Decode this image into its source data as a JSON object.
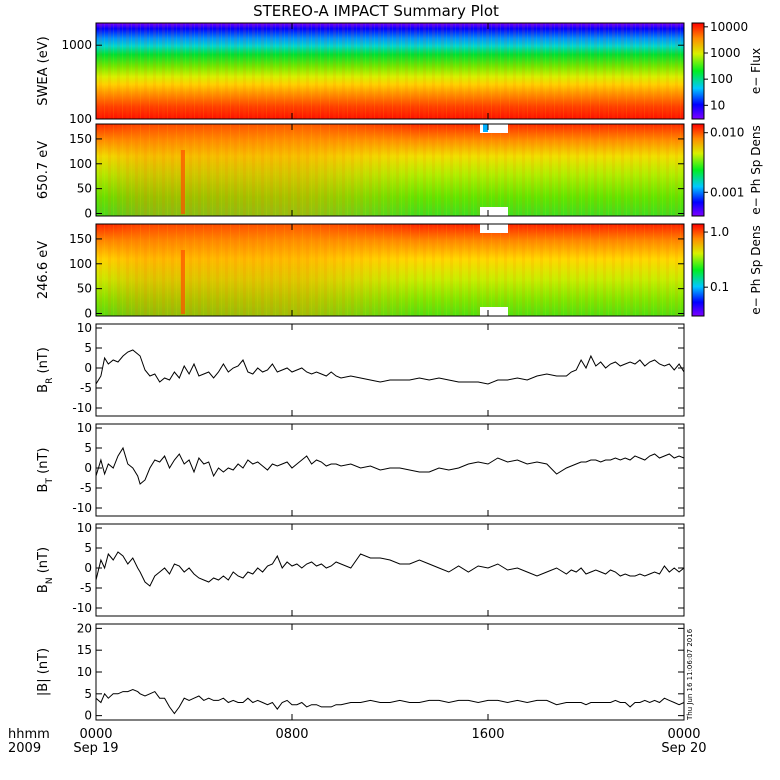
{
  "chart_data": {
    "title": "STEREO-A IMPACT Summary Plot",
    "type": "multi-panel",
    "xaxis": {
      "header_label": "hhmm",
      "header_year": "2009",
      "range_hours": [
        0,
        24
      ],
      "ticks": [
        {
          "hour": 0,
          "label": "0000",
          "date": "Sep 19"
        },
        {
          "hour": 8,
          "label": "0800",
          "date": ""
        },
        {
          "hour": 16,
          "label": "1600",
          "date": ""
        },
        {
          "hour": 24,
          "label": "0000",
          "date": "Sep 20"
        }
      ]
    },
    "spectrogram_panels": [
      {
        "name": "swea",
        "type": "heatmap",
        "ylabel": "SWEA (eV)",
        "yscale": "log",
        "ylim": [
          100,
          2000
        ],
        "yticks": [
          {
            "v": 1000,
            "label": "1000"
          },
          {
            "v": 100,
            "label": "100"
          }
        ],
        "colorbar_label": "e− Flux",
        "colorbar_scale": "log",
        "colorbar_range": [
          3,
          14000
        ],
        "colorbar_ticks": [
          {
            "v": 10000,
            "label": "10000"
          },
          {
            "v": 1000,
            "label": "1000"
          },
          {
            "v": 100,
            "label": "100"
          },
          {
            "v": 10,
            "label": "10"
          }
        ]
      },
      {
        "name": "pad-650",
        "type": "heatmap",
        "ylabel": "650.7 eV",
        "yscale": "linear",
        "ylim": [
          -5,
          180
        ],
        "yticks": [
          {
            "v": 150,
            "label": "150"
          },
          {
            "v": 100,
            "label": "100"
          },
          {
            "v": 50,
            "label": "50"
          },
          {
            "v": 0,
            "label": "0"
          }
        ],
        "colorbar_label": "e− Ph Sp Dens",
        "colorbar_scale": "log",
        "colorbar_range": [
          0.0004,
          0.014
        ],
        "colorbar_ticks": [
          {
            "v": 0.01,
            "label": "0.010"
          },
          {
            "v": 0.001,
            "label": "0.001"
          }
        ]
      },
      {
        "name": "pad-246",
        "type": "heatmap",
        "ylabel": "246.6 eV",
        "yscale": "linear",
        "ylim": [
          -5,
          180
        ],
        "yticks": [
          {
            "v": 150,
            "label": "150"
          },
          {
            "v": 100,
            "label": "100"
          },
          {
            "v": 50,
            "label": "50"
          },
          {
            "v": 0,
            "label": "0"
          }
        ],
        "colorbar_label": "e− Ph Sp Dens",
        "colorbar_scale": "log",
        "colorbar_range": [
          0.03,
          1.4
        ],
        "colorbar_ticks": [
          {
            "v": 1.0,
            "label": "1.0"
          },
          {
            "v": 0.1,
            "label": "0.1"
          }
        ]
      }
    ],
    "line_panels": [
      {
        "name": "br",
        "type": "line",
        "ylabel_main": "B",
        "ylabel_sub": "R",
        "ylabel_unit": " (nT)",
        "ylim": [
          -12,
          11
        ],
        "yticks": [
          {
            "v": 10,
            "label": "10"
          },
          {
            "v": 5,
            "label": "5"
          },
          {
            "v": 0,
            "label": "0"
          },
          {
            "v": -5,
            "label": "-5"
          },
          {
            "v": -10,
            "label": "-10"
          }
        ],
        "x": [
          0,
          0.2,
          0.35,
          0.5,
          0.7,
          0.9,
          1.1,
          1.3,
          1.5,
          1.7,
          1.8,
          2.0,
          2.2,
          2.4,
          2.6,
          2.8,
          3.0,
          3.2,
          3.4,
          3.6,
          3.8,
          4.0,
          4.2,
          4.4,
          4.6,
          4.8,
          5.0,
          5.2,
          5.4,
          5.6,
          5.8,
          6.0,
          6.2,
          6.4,
          6.6,
          6.8,
          7.0,
          7.2,
          7.4,
          7.6,
          7.8,
          8.0,
          8.2,
          8.4,
          8.6,
          8.8,
          9.0,
          9.2,
          9.4,
          9.6,
          9.8,
          10.0,
          10.4,
          10.8,
          11.2,
          11.6,
          12.0,
          12.4,
          12.8,
          13.2,
          13.6,
          14.0,
          14.4,
          14.8,
          15.2,
          15.6,
          16.0,
          16.4,
          16.8,
          17.2,
          17.6,
          18.0,
          18.4,
          18.8,
          19.2,
          19.4,
          19.6,
          19.8,
          20.0,
          20.2,
          20.4,
          20.6,
          20.8,
          21.0,
          21.2,
          21.4,
          21.6,
          21.8,
          22.0,
          22.2,
          22.4,
          22.6,
          22.8,
          23.0,
          23.2,
          23.4,
          23.6,
          23.8,
          24.0
        ],
        "values": [
          -4,
          -2,
          2.5,
          1,
          2,
          1.5,
          3,
          4,
          4.5,
          3.5,
          3,
          -0.5,
          -2,
          -1.5,
          -3.5,
          -2.5,
          -3,
          -1,
          -2.5,
          0.5,
          -1.5,
          1,
          -2,
          -1.5,
          -1,
          -2.5,
          -1,
          1,
          -1,
          0,
          0.5,
          2,
          -1,
          -1.5,
          0,
          -1,
          -0.5,
          1,
          -1,
          -0.5,
          0,
          -1,
          -0.5,
          0,
          -1,
          -1.5,
          -1,
          -1.5,
          -2,
          -1,
          -2,
          -2.5,
          -2,
          -2.5,
          -3,
          -3.5,
          -3,
          -3,
          -3,
          -2.5,
          -3,
          -2.5,
          -3,
          -3.5,
          -3.5,
          -3.5,
          -4,
          -3,
          -3,
          -2.5,
          -3,
          -2,
          -1.5,
          -2,
          -2,
          -1,
          -0.5,
          2,
          0,
          3,
          0.5,
          1.5,
          0,
          1,
          1.5,
          0.5,
          1,
          1.5,
          1,
          2,
          0.5,
          1.5,
          2,
          1,
          0.5,
          1,
          -0.5,
          1,
          -1
        ]
      },
      {
        "name": "bt",
        "type": "line",
        "ylabel_main": "B",
        "ylabel_sub": "T",
        "ylabel_unit": " (nT)",
        "ylim": [
          -12,
          11
        ],
        "yticks": [
          {
            "v": 10,
            "label": "10"
          },
          {
            "v": 5,
            "label": "5"
          },
          {
            "v": 0,
            "label": "0"
          },
          {
            "v": -5,
            "label": "-5"
          },
          {
            "v": -10,
            "label": "-10"
          }
        ],
        "x": [
          0,
          0.2,
          0.35,
          0.5,
          0.7,
          0.9,
          1.1,
          1.3,
          1.5,
          1.7,
          1.8,
          2.0,
          2.2,
          2.4,
          2.6,
          2.8,
          3.0,
          3.2,
          3.4,
          3.6,
          3.8,
          4.0,
          4.2,
          4.4,
          4.6,
          4.8,
          5.0,
          5.2,
          5.4,
          5.6,
          5.8,
          6.0,
          6.2,
          6.4,
          6.6,
          6.8,
          7.0,
          7.2,
          7.4,
          7.6,
          7.8,
          8.0,
          8.2,
          8.4,
          8.6,
          8.8,
          9.0,
          9.2,
          9.4,
          9.6,
          9.8,
          10.0,
          10.4,
          10.8,
          11.2,
          11.6,
          12.0,
          12.4,
          12.8,
          13.2,
          13.6,
          14.0,
          14.4,
          14.8,
          15.2,
          15.6,
          16.0,
          16.4,
          16.8,
          17.2,
          17.6,
          18.0,
          18.4,
          18.8,
          19.2,
          19.4,
          19.6,
          19.8,
          20.0,
          20.2,
          20.4,
          20.6,
          20.8,
          21.0,
          21.2,
          21.4,
          21.6,
          21.8,
          22.0,
          22.2,
          22.4,
          22.6,
          22.8,
          23.0,
          23.2,
          23.4,
          23.6,
          23.8,
          24.0
        ],
        "values": [
          -2,
          2,
          -1.5,
          1,
          0,
          3,
          5,
          1,
          0,
          -2,
          -4,
          -3,
          0,
          2,
          1.5,
          3,
          0,
          2,
          3.5,
          1,
          2,
          -1,
          2.5,
          1,
          1.5,
          -2,
          0,
          -1,
          0,
          -0.5,
          1,
          0,
          2,
          1,
          1.5,
          0.5,
          -0.5,
          1,
          0.5,
          1,
          1.5,
          0,
          1,
          2,
          3,
          1,
          2,
          1.5,
          0.5,
          1,
          1,
          0.5,
          1,
          0,
          0.5,
          -0.5,
          0,
          0,
          -0.5,
          -1,
          -1,
          0,
          -0.5,
          0,
          1,
          1.5,
          1,
          2.5,
          1.5,
          2,
          1,
          1.5,
          1,
          -1.5,
          0,
          0.5,
          1,
          1.5,
          1.5,
          2,
          2,
          1.5,
          2,
          2,
          2.5,
          2,
          2.5,
          2,
          3,
          2.5,
          2,
          3,
          3.5,
          2.5,
          3,
          3.5,
          2.5,
          3,
          2.5
        ]
      },
      {
        "name": "bn",
        "type": "line",
        "ylabel_main": "B",
        "ylabel_sub": "N",
        "ylabel_unit": " (nT)",
        "ylim": [
          -12,
          11
        ],
        "yticks": [
          {
            "v": 10,
            "label": "10"
          },
          {
            "v": 5,
            "label": "5"
          },
          {
            "v": 0,
            "label": "0"
          },
          {
            "v": -5,
            "label": "-5"
          },
          {
            "v": -10,
            "label": "-10"
          }
        ],
        "x": [
          0,
          0.2,
          0.35,
          0.5,
          0.7,
          0.9,
          1.1,
          1.3,
          1.5,
          1.7,
          1.8,
          2.0,
          2.2,
          2.4,
          2.6,
          2.8,
          3.0,
          3.2,
          3.4,
          3.6,
          3.8,
          4.0,
          4.2,
          4.4,
          4.6,
          4.8,
          5.0,
          5.2,
          5.4,
          5.6,
          5.8,
          6.0,
          6.2,
          6.4,
          6.6,
          6.8,
          7.0,
          7.2,
          7.4,
          7.6,
          7.8,
          8.0,
          8.2,
          8.4,
          8.6,
          8.8,
          9.0,
          9.2,
          9.4,
          9.6,
          9.8,
          10.0,
          10.4,
          10.8,
          11.2,
          11.6,
          12.0,
          12.4,
          12.8,
          13.2,
          13.6,
          14.0,
          14.4,
          14.8,
          15.2,
          15.6,
          16.0,
          16.4,
          16.8,
          17.2,
          17.6,
          18.0,
          18.4,
          18.8,
          19.2,
          19.4,
          19.6,
          19.8,
          20.0,
          20.2,
          20.4,
          20.6,
          20.8,
          21.0,
          21.2,
          21.4,
          21.6,
          21.8,
          22.0,
          22.2,
          22.4,
          22.6,
          22.8,
          23.0,
          23.2,
          23.4,
          23.6,
          23.8,
          24.0
        ],
        "values": [
          -3,
          2,
          0,
          3.5,
          2,
          4,
          3,
          1,
          2.5,
          0,
          -1,
          -3.5,
          -4.5,
          -2,
          -1,
          0,
          -1.5,
          1,
          0.5,
          -1,
          0,
          -1.5,
          -2.5,
          -3,
          -3.5,
          -2.5,
          -3,
          -2,
          -3,
          -1,
          -2,
          -2.5,
          -1,
          -1.5,
          0,
          -1,
          0.5,
          1,
          3,
          0,
          1.5,
          0.5,
          1,
          0,
          1,
          1.5,
          0.5,
          1,
          0,
          0.5,
          1.5,
          1,
          0,
          3.5,
          2.5,
          2.5,
          2,
          1,
          1,
          2,
          1,
          0,
          -1,
          0.5,
          -1,
          0.5,
          0,
          1,
          -0.5,
          0,
          -1,
          -2,
          -1,
          0,
          -1.5,
          -0.5,
          -1,
          0,
          -1.5,
          -1,
          -0.5,
          -1,
          -1.5,
          -0.5,
          -1,
          -2,
          -1.5,
          -2,
          -2,
          -1.5,
          -2,
          -1.5,
          -1,
          -1.5,
          0.5,
          -1,
          0,
          -1,
          0
        ]
      },
      {
        "name": "babs",
        "type": "line",
        "ylabel_main": "|B|",
        "ylabel_sub": "",
        "ylabel_unit": " (nT)",
        "ylim": [
          -1,
          21
        ],
        "yticks": [
          {
            "v": 20,
            "label": "20"
          },
          {
            "v": 15,
            "label": "15"
          },
          {
            "v": 10,
            "label": "10"
          },
          {
            "v": 5,
            "label": "5"
          },
          {
            "v": 0,
            "label": "0"
          }
        ],
        "x": [
          0,
          0.2,
          0.35,
          0.5,
          0.7,
          0.9,
          1.1,
          1.3,
          1.5,
          1.7,
          1.8,
          2.0,
          2.2,
          2.4,
          2.6,
          2.8,
          3.0,
          3.2,
          3.4,
          3.6,
          3.8,
          4.0,
          4.2,
          4.4,
          4.6,
          4.8,
          5.0,
          5.2,
          5.4,
          5.6,
          5.8,
          6.0,
          6.2,
          6.4,
          6.6,
          6.8,
          7.0,
          7.2,
          7.4,
          7.6,
          7.8,
          8.0,
          8.2,
          8.4,
          8.6,
          8.8,
          9.0,
          9.2,
          9.4,
          9.6,
          9.8,
          10.0,
          10.4,
          10.8,
          11.2,
          11.6,
          12.0,
          12.4,
          12.8,
          13.2,
          13.6,
          14.0,
          14.4,
          14.8,
          15.2,
          15.6,
          16.0,
          16.4,
          16.8,
          17.2,
          17.6,
          18.0,
          18.4,
          18.8,
          19.2,
          19.4,
          19.6,
          19.8,
          20.0,
          20.2,
          20.4,
          20.6,
          20.8,
          21.0,
          21.2,
          21.4,
          21.6,
          21.8,
          22.0,
          22.2,
          22.4,
          22.6,
          22.8,
          23.0,
          23.2,
          23.4,
          23.6,
          23.8,
          24.0
        ],
        "values": [
          4,
          3,
          5,
          4,
          5,
          5,
          5.5,
          5.5,
          6,
          5.5,
          5,
          4.5,
          5,
          5.5,
          4,
          4,
          2,
          0.5,
          2,
          4,
          3.5,
          4,
          4.5,
          3.5,
          4,
          3.5,
          3.5,
          4,
          3,
          3.5,
          3,
          3,
          4,
          3,
          3.5,
          3,
          2.5,
          3,
          1.5,
          3,
          3.5,
          2.5,
          2.5,
          3,
          2,
          2.5,
          2.5,
          2,
          2,
          2,
          2.5,
          2.5,
          3,
          3,
          3.5,
          3,
          3,
          3.5,
          3,
          3,
          3.5,
          3.5,
          3,
          3.5,
          3.5,
          3,
          3.5,
          3.5,
          3,
          3.5,
          3,
          3.5,
          3.5,
          2.5,
          3,
          3,
          3,
          3,
          2.5,
          3,
          3,
          3,
          3,
          3,
          3.5,
          3,
          3,
          2,
          3,
          3,
          3.5,
          3,
          3.5,
          3,
          4,
          3.5,
          3,
          2.5,
          3
        ]
      }
    ],
    "timestamp_text": "Thu Jun 16 11:06:07 2016"
  }
}
